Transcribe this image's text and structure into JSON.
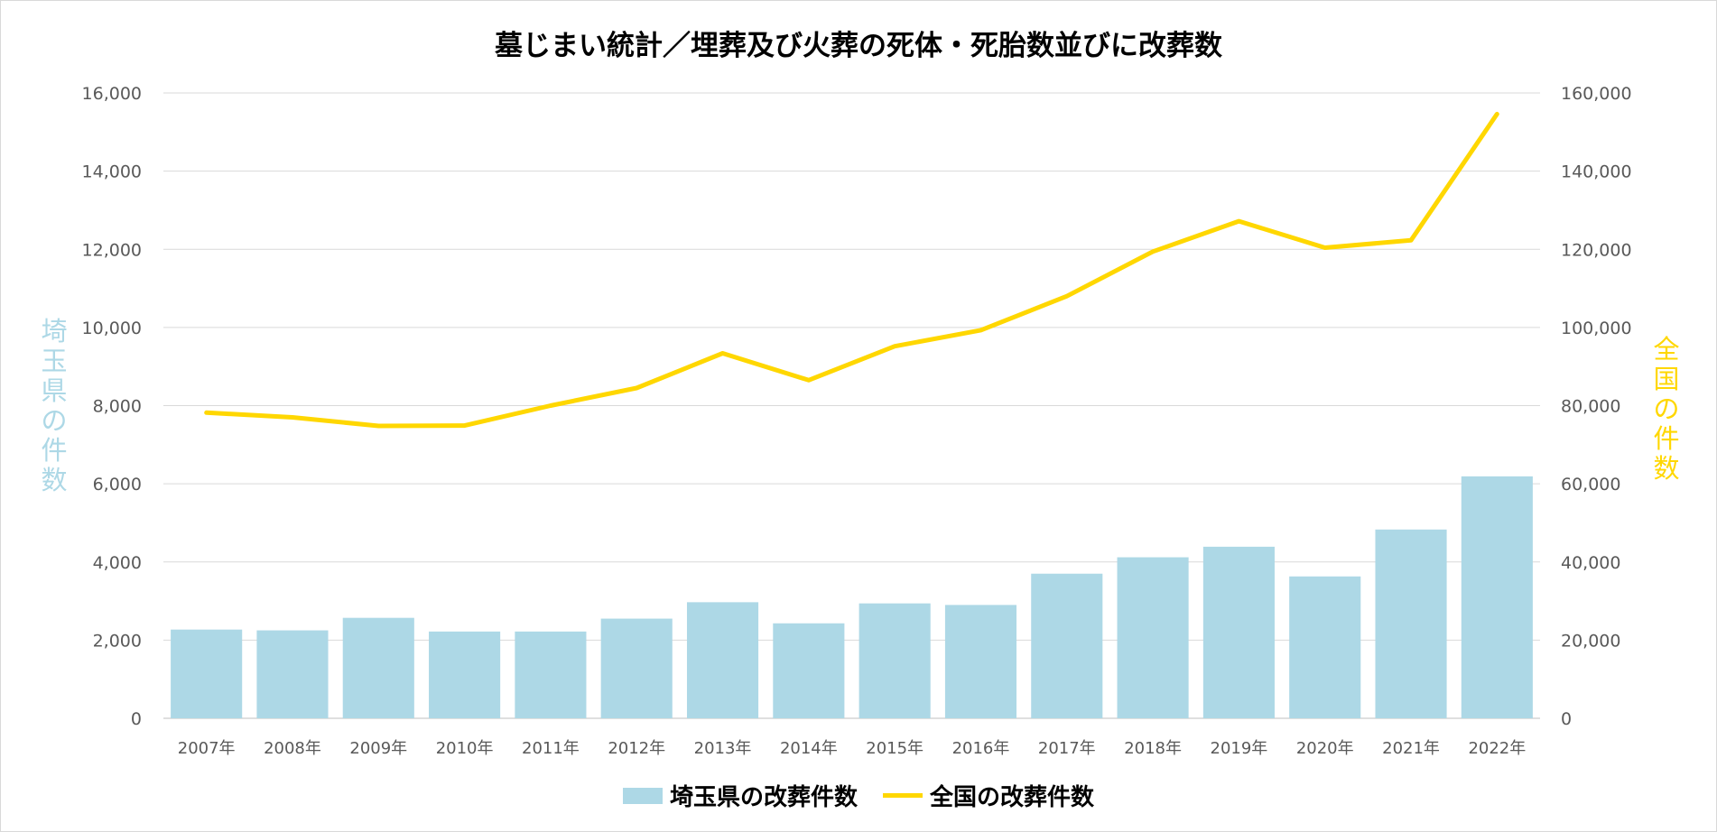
{
  "chart_data": {
    "type": "bar+line",
    "title": "墓じまい統計／埋葬及び火葬の死体・死胎数並びに改葬数",
    "categories": [
      "2007年",
      "2008年",
      "2009年",
      "2010年",
      "2011年",
      "2012年",
      "2013年",
      "2014年",
      "2015年",
      "2016年",
      "2017年",
      "2018年",
      "2019年",
      "2020年",
      "2021年",
      "2022年"
    ],
    "series": [
      {
        "name": "埼玉県の改葬件数",
        "type": "bar",
        "axis": "left",
        "color": "#add8e6",
        "values": [
          2270,
          2250,
          2570,
          2220,
          2220,
          2550,
          2970,
          2430,
          2940,
          2900,
          3700,
          4120,
          4390,
          3630,
          4830,
          6190
        ]
      },
      {
        "name": "全国の改葬件数",
        "type": "line",
        "axis": "right",
        "color": "#ffd700",
        "values": [
          78200,
          77000,
          74800,
          74900,
          80000,
          84500,
          93400,
          86500,
          95200,
          99300,
          108000,
          119400,
          127200,
          120400,
          122300,
          154600
        ]
      }
    ],
    "y_left": {
      "label": "埼玉県の件数",
      "ylim": [
        0,
        16000
      ],
      "ticks": [
        "0",
        "2,000",
        "4,000",
        "6,000",
        "8,000",
        "10,000",
        "12,000",
        "14,000",
        "16,000"
      ]
    },
    "y_right": {
      "label": "全国の件数",
      "ylim": [
        0,
        160000
      ],
      "ticks": [
        "0",
        "20,000",
        "40,000",
        "60,000",
        "80,000",
        "100,000",
        "120,000",
        "140,000",
        "160,000"
      ]
    },
    "grid": true,
    "legend_position": "bottom"
  }
}
